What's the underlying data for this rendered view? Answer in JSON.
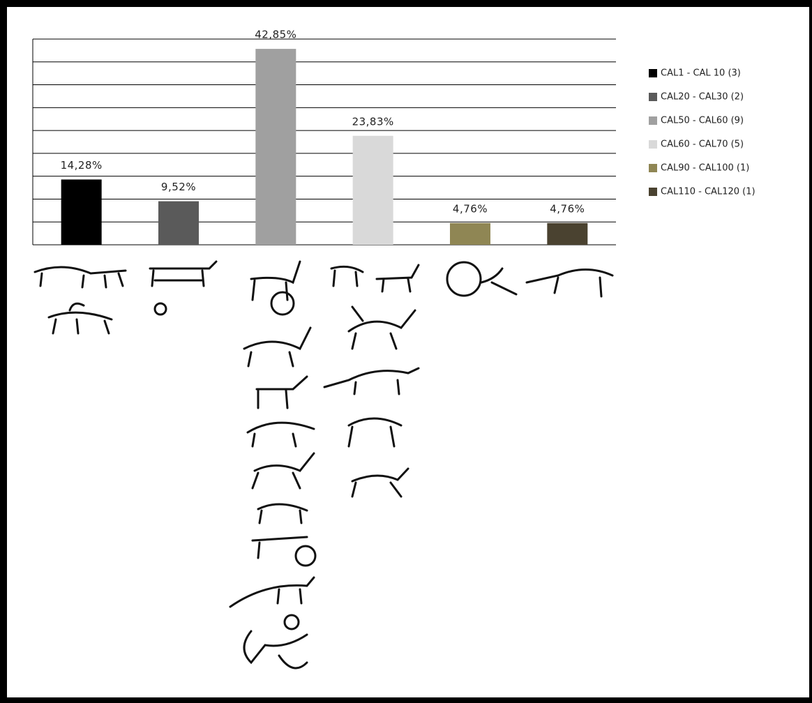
{
  "chart_data": {
    "type": "bar",
    "categories": [
      "CAL1 - CAL 10 (3)",
      "CAL20 - CAL30 (2)",
      "CAL50 - CAL60 (9)",
      "CAL60 - CAL70 (5)",
      "CAL90 - CAL100 (1)",
      "CAL110 - CAL120 (1)"
    ],
    "values": [
      14.28,
      9.52,
      42.85,
      23.83,
      4.76,
      4.76
    ],
    "value_labels": [
      "14,28%",
      "9,52%",
      "42,85%",
      "23,83%",
      "4,76%",
      "4,76%"
    ],
    "colors": [
      "#000000",
      "#5a5a5a",
      "#a0a0a0",
      "#d9d9d9",
      "#8f8654",
      "#4a4230"
    ],
    "ylim": [
      0,
      45
    ],
    "yticks": [
      0,
      5,
      10,
      15,
      20,
      25,
      30,
      35,
      40,
      45
    ],
    "grid": true,
    "legend": "right"
  }
}
